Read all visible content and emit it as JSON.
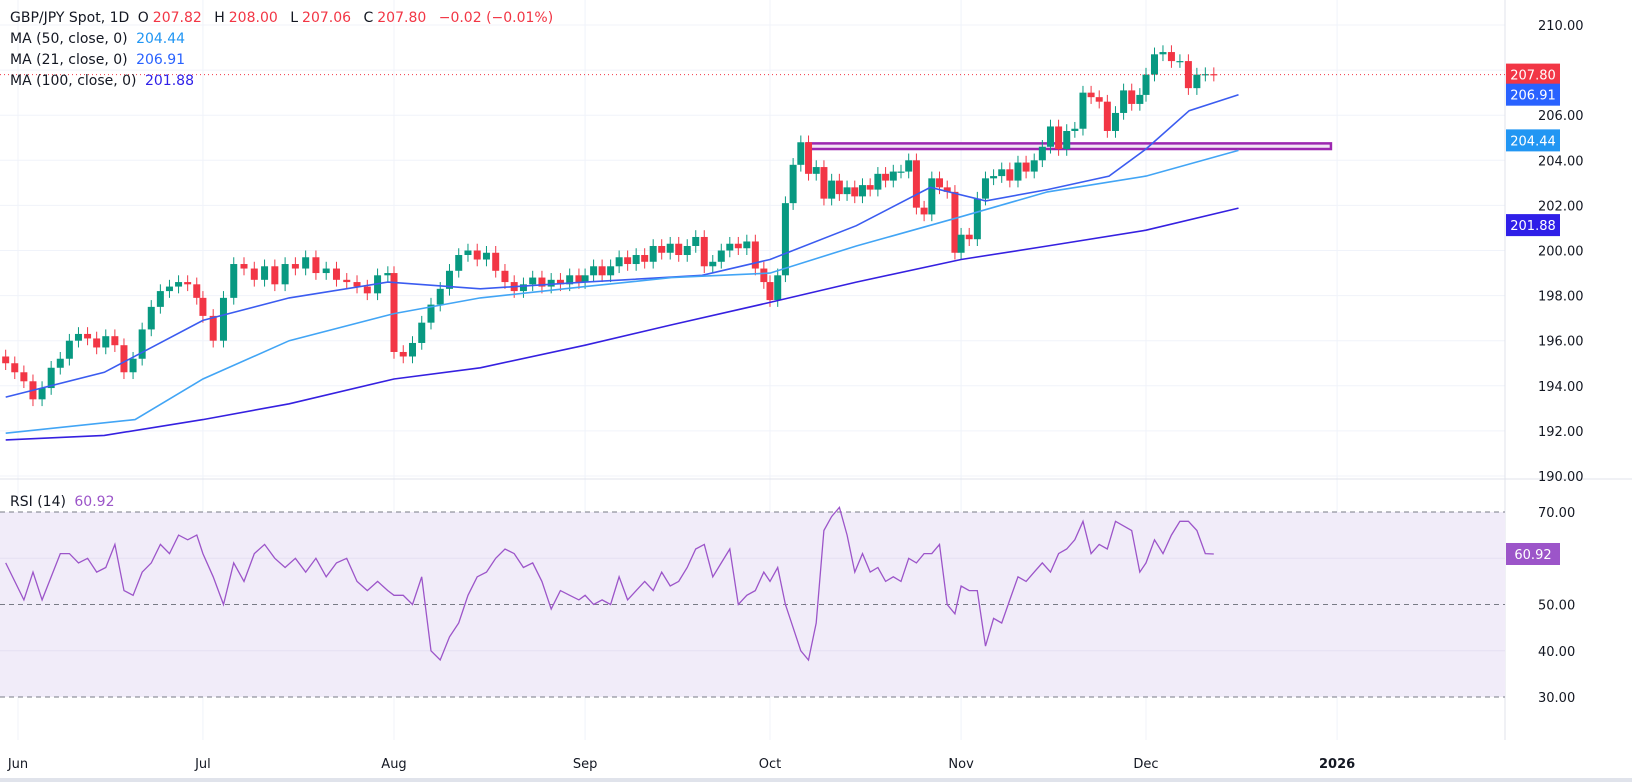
{
  "header": {
    "symbol": "GBP/JPY Spot, 1D",
    "o_label": "O",
    "o": "207.82",
    "h_label": "H",
    "h": "208.00",
    "l_label": "L",
    "l": "207.06",
    "c_label": "C",
    "c": "207.80",
    "change": "−0.02 (−0.01%)"
  },
  "indicators": [
    {
      "label": "MA (50, close, 0)",
      "value": "204.44",
      "color": "#2196f3"
    },
    {
      "label": "MA (21, close, 0)",
      "value": "206.91",
      "color": "#2962ff"
    },
    {
      "label": "MA (100, close, 0)",
      "value": "201.88",
      "color": "#2f1fe8"
    }
  ],
  "rsi_header": {
    "label": "RSI (14)",
    "value": "60.92",
    "color": "#9c55c9"
  },
  "colors": {
    "up": "#089981",
    "down": "#f23645",
    "rect": "#9c27b0",
    "rsi_band": "#f1ecf9"
  },
  "chart_data": [
    {
      "type": "candlestick",
      "title": "GBP/JPY Spot, 1D",
      "ylim": [
        190,
        210
      ],
      "yticks": [
        "210.00",
        "208.00",
        "206.00",
        "204.00",
        "202.00",
        "200.00",
        "198.00",
        "196.00",
        "194.00",
        "192.00",
        "190.00"
      ],
      "xticks": [
        {
          "label": "Jun",
          "date": "2025-06-01"
        },
        {
          "label": "Jul",
          "date": "2025-07-01"
        },
        {
          "label": "Aug",
          "date": "2025-08-01"
        },
        {
          "label": "Sep",
          "date": "2025-09-01"
        },
        {
          "label": "Oct",
          "date": "2025-10-01"
        },
        {
          "label": "Nov",
          "date": "2025-11-01"
        },
        {
          "label": "Dec",
          "date": "2025-12-01"
        },
        {
          "label": "2026",
          "date": "2026-01-01"
        }
      ],
      "last_price": {
        "value": "207.80",
        "color": "#f23645"
      },
      "price_tags": [
        {
          "value": "206.91",
          "color": "#2962ff"
        },
        {
          "value": "204.44",
          "color": "#2196f3"
        },
        {
          "value": "201.88",
          "color": "#2f1fe8"
        }
      ],
      "resistance_zone": {
        "from_date": "2025-10-07",
        "to_date": "2025-12-31",
        "low": 204.5,
        "high": 204.75
      },
      "closes_by_month": [
        {
          "month": "2025-06",
          "start": "2025-05-30",
          "end": "2025-06-30",
          "close": [
            195.0,
            194.6,
            194.2,
            193.4,
            193.9,
            194.8,
            195.2,
            196.0,
            196.3,
            196.1,
            195.7,
            196.2,
            195.8,
            194.6,
            195.2,
            196.5,
            197.5,
            198.2,
            198.4,
            198.6,
            198.5,
            197.9
          ]
        },
        {
          "month": "2025-07",
          "start": "2025-07-01",
          "end": "2025-07-31",
          "close": [
            197.1,
            196.0,
            197.9,
            199.4,
            199.2,
            198.7,
            199.3,
            198.5,
            199.4,
            199.2,
            199.7,
            199.0,
            199.2,
            198.7,
            198.6,
            198.4,
            198.1,
            198.9,
            199.0
          ]
        },
        {
          "month": "2025-08",
          "start": "2025-08-01",
          "end": "2025-08-31",
          "close": [
            195.5,
            195.3,
            195.9,
            196.8,
            197.6,
            198.3,
            199.1,
            199.8,
            200.0,
            199.6,
            199.9,
            199.1,
            198.6,
            198.2,
            198.5,
            198.8,
            198.4,
            198.7,
            198.5,
            198.9,
            198.6
          ]
        },
        {
          "month": "2025-09",
          "start": "2025-09-01",
          "end": "2025-09-30",
          "close": [
            198.9,
            199.3,
            198.9,
            199.3,
            199.7,
            199.4,
            199.8,
            199.5,
            200.2,
            199.9,
            200.3,
            199.8,
            200.2,
            200.6,
            199.3,
            199.5,
            200.0,
            200.3,
            200.1,
            200.4,
            199.2,
            198.6
          ]
        },
        {
          "month": "2025-10",
          "start": "2025-10-01",
          "end": "2025-10-31",
          "close": [
            197.8,
            198.9,
            202.1,
            203.8,
            204.8,
            203.4,
            203.7,
            202.3,
            203.1,
            202.5,
            202.8,
            202.4,
            202.9,
            202.7,
            203.4,
            203.1,
            203.5,
            203.5,
            204.0,
            201.9,
            201.6,
            203.2,
            202.8,
            202.6,
            199.9
          ]
        },
        {
          "month": "2025-11",
          "start": "2025-11-01",
          "end": "2025-11-30",
          "close": [
            200.7,
            200.5,
            202.3,
            203.2,
            203.3,
            203.6,
            203.1,
            203.9,
            203.5,
            204.0,
            204.6,
            205.5,
            204.5,
            205.3,
            205.4,
            207.0,
            206.8,
            206.6,
            205.3,
            206.1,
            207.1,
            206.5,
            206.9
          ]
        },
        {
          "month": "2025-12",
          "start": "2025-12-01",
          "end": "2025-12-12",
          "close": [
            207.8,
            208.7,
            208.8,
            208.4,
            208.4,
            207.2,
            207.8,
            207.82,
            207.8
          ]
        }
      ],
      "moving_averages": [
        {
          "name": "MA (21, close, 0)",
          "color": "#3b5cf0",
          "points": [
            [
              "2025-05-30",
              193.5
            ],
            [
              "2025-06-15",
              194.6
            ],
            [
              "2025-07-01",
              196.9
            ],
            [
              "2025-07-15",
              197.9
            ],
            [
              "2025-07-31",
              198.6
            ],
            [
              "2025-08-15",
              198.3
            ],
            [
              "2025-09-01",
              198.6
            ],
            [
              "2025-09-20",
              198.9
            ],
            [
              "2025-10-01",
              199.6
            ],
            [
              "2025-10-15",
              201.1
            ],
            [
              "2025-10-27",
              202.8
            ],
            [
              "2025-11-05",
              202.2
            ],
            [
              "2025-11-15",
              202.7
            ],
            [
              "2025-11-25",
              203.3
            ],
            [
              "2025-12-01",
              204.5
            ],
            [
              "2025-12-08",
              206.2
            ],
            [
              "2025-12-16",
              206.91
            ]
          ]
        },
        {
          "name": "MA (50, close, 0)",
          "color": "#42a5f5",
          "points": [
            [
              "2025-05-30",
              191.9
            ],
            [
              "2025-06-20",
              192.5
            ],
            [
              "2025-07-01",
              194.3
            ],
            [
              "2025-07-15",
              196.0
            ],
            [
              "2025-08-01",
              197.2
            ],
            [
              "2025-08-15",
              197.9
            ],
            [
              "2025-09-01",
              198.4
            ],
            [
              "2025-09-15",
              198.8
            ],
            [
              "2025-10-01",
              199.0
            ],
            [
              "2025-10-15",
              200.2
            ],
            [
              "2025-11-01",
              201.5
            ],
            [
              "2025-11-15",
              202.6
            ],
            [
              "2025-12-01",
              203.3
            ],
            [
              "2025-12-16",
              204.44
            ]
          ]
        },
        {
          "name": "MA (100, close, 0)",
          "color": "#3520e0",
          "points": [
            [
              "2025-05-30",
              191.6
            ],
            [
              "2025-06-15",
              191.8
            ],
            [
              "2025-07-01",
              192.5
            ],
            [
              "2025-07-15",
              193.2
            ],
            [
              "2025-08-01",
              194.3
            ],
            [
              "2025-08-15",
              194.8
            ],
            [
              "2025-09-01",
              195.8
            ],
            [
              "2025-09-15",
              196.7
            ],
            [
              "2025-10-01",
              197.7
            ],
            [
              "2025-10-15",
              198.6
            ],
            [
              "2025-11-01",
              199.6
            ],
            [
              "2025-11-15",
              200.2
            ],
            [
              "2025-12-01",
              200.9
            ],
            [
              "2025-12-16",
              201.88
            ]
          ]
        }
      ]
    },
    {
      "type": "line",
      "title": "RSI (14)",
      "ylim": [
        30,
        70
      ],
      "band": [
        30,
        70
      ],
      "levels": [
        30,
        50,
        70
      ],
      "yticks": [
        "70.00",
        "50.00",
        "40.00",
        "30.00"
      ],
      "last_value": {
        "value": "60.92",
        "color": "#9c55c9"
      },
      "color": "#9c55c9",
      "values_by_month": [
        [
          59,
          55,
          51,
          57,
          51,
          56,
          61,
          61,
          59,
          60,
          57,
          58,
          63,
          53,
          52,
          57,
          59,
          63,
          61,
          65,
          64,
          65
        ],
        [
          61,
          56,
          50,
          59,
          55,
          61,
          63,
          60,
          58,
          60,
          57,
          60,
          56,
          59,
          60,
          55,
          53,
          55,
          53
        ],
        [
          52,
          52,
          50,
          56,
          40,
          38,
          43,
          46,
          52,
          56,
          57,
          60,
          62,
          61,
          58,
          59,
          55,
          49,
          53,
          52,
          51
        ],
        [
          52,
          50,
          51,
          50,
          56,
          51,
          53,
          55,
          53,
          57,
          54,
          55,
          58,
          62,
          63,
          56,
          59,
          62,
          50,
          52,
          53,
          57
        ],
        [
          55,
          58,
          50,
          45,
          40,
          38,
          46,
          66,
          69,
          71,
          65,
          57,
          61,
          57,
          58,
          55,
          56,
          55,
          60,
          59,
          61,
          61,
          63,
          50,
          48
        ],
        [
          54,
          53,
          53,
          41,
          47,
          46,
          51,
          56,
          55,
          57,
          59,
          57,
          61,
          62,
          64,
          68,
          61,
          63,
          62,
          68,
          67,
          66,
          57
        ],
        [
          59,
          64,
          61,
          65,
          68,
          68,
          66,
          61,
          60.92
        ]
      ]
    }
  ]
}
